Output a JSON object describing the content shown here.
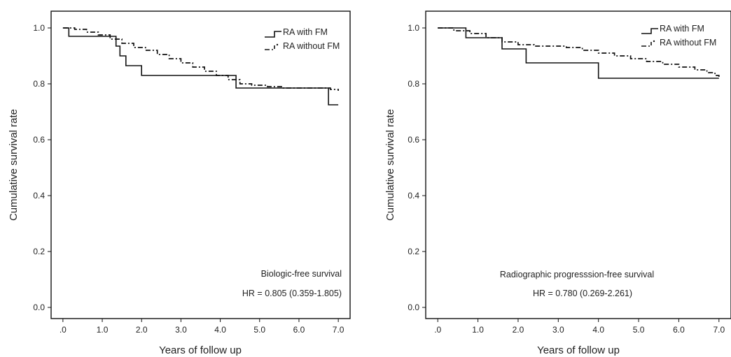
{
  "chart_data": [
    {
      "type": "line",
      "step": true,
      "title": "",
      "xlabel": "Years of follow up",
      "ylabel": "Cumulative survival rate",
      "xlim": [
        -0.3,
        7.3
      ],
      "ylim": [
        -0.04,
        1.06
      ],
      "xticks": [
        0,
        1,
        2,
        3,
        4,
        5,
        6,
        7
      ],
      "xtick_labels": [
        ".0",
        "1.0",
        "2.0",
        "3.0",
        "4.0",
        "5.0",
        "6.0",
        "7.0"
      ],
      "yticks": [
        0,
        0.2,
        0.4,
        0.6,
        0.8,
        1.0
      ],
      "ytick_labels": [
        "0.0",
        "0.2",
        "0.4",
        "0.6",
        "0.8",
        "1.0"
      ],
      "grid": false,
      "legend_position": "top-right",
      "series": [
        {
          "name": "RA with FM",
          "style": "solid",
          "x": [
            0,
            0.15,
            1.35,
            1.45,
            1.6,
            1.65,
            2.0,
            4.4,
            6.75,
            7.0
          ],
          "y": [
            1.0,
            0.97,
            0.935,
            0.9,
            0.865,
            0.865,
            0.83,
            0.785,
            0.725,
            0.725
          ]
        },
        {
          "name": "RA without FM",
          "style": "dash-dot",
          "x": [
            0,
            0.3,
            0.6,
            0.9,
            1.2,
            1.5,
            1.8,
            2.1,
            2.4,
            2.7,
            3.0,
            3.3,
            3.6,
            3.9,
            4.2,
            4.5,
            4.8,
            5.2,
            5.6,
            6.0,
            6.4,
            6.8,
            7.0
          ],
          "y": [
            1.0,
            0.995,
            0.985,
            0.975,
            0.96,
            0.945,
            0.93,
            0.92,
            0.905,
            0.89,
            0.875,
            0.86,
            0.845,
            0.83,
            0.815,
            0.8,
            0.795,
            0.79,
            0.785,
            0.785,
            0.785,
            0.78,
            0.775
          ]
        }
      ],
      "annotations": [
        "Biologic-free survival",
        "HR = 0.805 (0.359-1.805)"
      ]
    },
    {
      "type": "line",
      "step": true,
      "title": "",
      "xlabel": "Years of follow up",
      "ylabel": "Cumulative survival rate",
      "xlim": [
        -0.3,
        7.3
      ],
      "ylim": [
        -0.04,
        1.06
      ],
      "xticks": [
        0,
        1,
        2,
        3,
        4,
        5,
        6,
        7
      ],
      "xtick_labels": [
        ".0",
        "1.0",
        "2.0",
        "3.0",
        "4.0",
        "5.0",
        "6.0",
        "7.0"
      ],
      "yticks": [
        0,
        0.2,
        0.4,
        0.6,
        0.8,
        1.0
      ],
      "ytick_labels": [
        "0.0",
        "0.2",
        "0.4",
        "0.6",
        "0.8",
        "1.0"
      ],
      "grid": false,
      "legend_position": "top-right",
      "series": [
        {
          "name": "RA with FM",
          "style": "solid",
          "x": [
            0,
            0.7,
            1.6,
            2.2,
            4.0,
            7.0
          ],
          "y": [
            1.0,
            0.965,
            0.925,
            0.875,
            0.82,
            0.82
          ]
        },
        {
          "name": "RA without FM",
          "style": "dash-dot",
          "x": [
            0,
            0.4,
            0.8,
            1.2,
            1.6,
            2.0,
            2.4,
            2.8,
            3.2,
            3.6,
            4.0,
            4.4,
            4.8,
            5.2,
            5.6,
            6.0,
            6.4,
            6.7,
            6.9,
            7.0
          ],
          "y": [
            1.0,
            0.99,
            0.98,
            0.965,
            0.95,
            0.94,
            0.935,
            0.935,
            0.93,
            0.92,
            0.91,
            0.9,
            0.89,
            0.88,
            0.87,
            0.86,
            0.85,
            0.84,
            0.83,
            0.825
          ]
        }
      ],
      "annotations": [
        "Radiographic progresssion-free survival",
        "HR = 0.780 (0.269-2.261)"
      ]
    }
  ]
}
